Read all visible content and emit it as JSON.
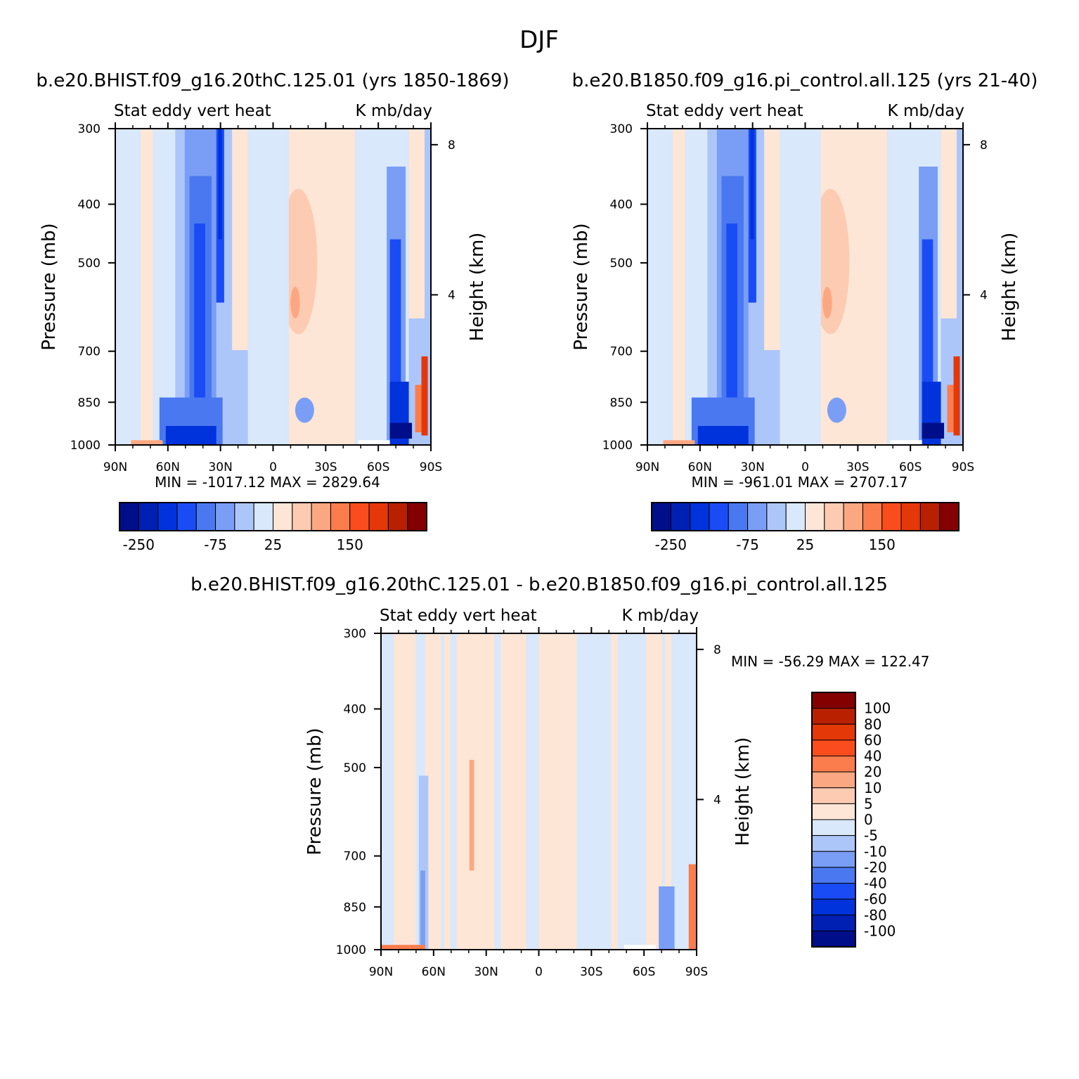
{
  "main_title": "DJF",
  "colors": {
    "abs_levels": [
      "#000e8a",
      "#0020b4",
      "#0033dc",
      "#1a4cf5",
      "#4a78f0",
      "#7a9ef5",
      "#adc6fa",
      "#d9e8fb",
      "#fde6d6",
      "#fccbb2",
      "#fba882",
      "#fb7c4c",
      "#fb4c1e",
      "#e43808",
      "#b82000",
      "#840000"
    ],
    "diff_levels": [
      "#000e8a",
      "#0020b4",
      "#0033dc",
      "#1a4cf5",
      "#4a78f0",
      "#7a9ef5",
      "#adc6fa",
      "#d9e8fb",
      "#fde6d6",
      "#fccbb2",
      "#fba882",
      "#fb7c4c",
      "#fb4c1e",
      "#e43808",
      "#b82000",
      "#840000"
    ]
  },
  "chart_data": [
    {
      "type": "heatmap",
      "case_title": "b.e20.BHIST.f09_g16.20thC.125.01 (yrs 1850-1869)",
      "variable": "Stat eddy vert heat",
      "units": "K mb/day",
      "ylabel": "Pressure (mb)",
      "ylabel_right": "Height (km)",
      "x_ticks": [
        "90N",
        "60N",
        "30N",
        "0",
        "30S",
        "60S",
        "90S"
      ],
      "y_ticks": [
        "300",
        "400",
        "500",
        "700",
        "850",
        "1000"
      ],
      "y_ticks_right": [
        "8",
        "4"
      ],
      "ylim": [
        1000,
        300
      ],
      "min_label": "MIN = -1017.12",
      "max_label": "MAX = 2829.64",
      "min": -1017.12,
      "max": 2829.64,
      "colorbar_labels": [
        "-250",
        "-75",
        "25",
        "150"
      ]
    },
    {
      "type": "heatmap",
      "case_title": "b.e20.B1850.f09_g16.pi_control.all.125 (yrs 21-40)",
      "variable": "Stat eddy vert heat",
      "units": "K mb/day",
      "ylabel": "Pressure (mb)",
      "ylabel_right": "Height (km)",
      "x_ticks": [
        "90N",
        "60N",
        "30N",
        "0",
        "30S",
        "60S",
        "90S"
      ],
      "y_ticks": [
        "300",
        "400",
        "500",
        "700",
        "850",
        "1000"
      ],
      "y_ticks_right": [
        "8",
        "4"
      ],
      "ylim": [
        1000,
        300
      ],
      "min_label": "MIN = -961.01",
      "max_label": "MAX = 2707.17",
      "min": -961.01,
      "max": 2707.17,
      "colorbar_labels": [
        "-250",
        "-75",
        "25",
        "150"
      ]
    },
    {
      "type": "heatmap",
      "case_title": "b.e20.BHIST.f09_g16.20thC.125.01 - b.e20.B1850.f09_g16.pi_control.all.125",
      "variable": "Stat eddy vert heat",
      "units": "K mb/day",
      "ylabel": "Pressure (mb)",
      "ylabel_right": "Height (km)",
      "x_ticks": [
        "90N",
        "60N",
        "30N",
        "0",
        "30S",
        "60S",
        "90S"
      ],
      "y_ticks": [
        "300",
        "400",
        "500",
        "700",
        "850",
        "1000"
      ],
      "y_ticks_right": [
        "8",
        "4"
      ],
      "ylim": [
        1000,
        300
      ],
      "min_label": "MIN = -56.29",
      "max_label": "MAX = 122.47",
      "min": -56.29,
      "max": 122.47,
      "colorbar_labels": [
        "100",
        "80",
        "60",
        "40",
        "20",
        "10",
        "5",
        "0",
        "-5",
        "-10",
        "-20",
        "-40",
        "-60",
        "-80",
        "-100"
      ]
    }
  ]
}
